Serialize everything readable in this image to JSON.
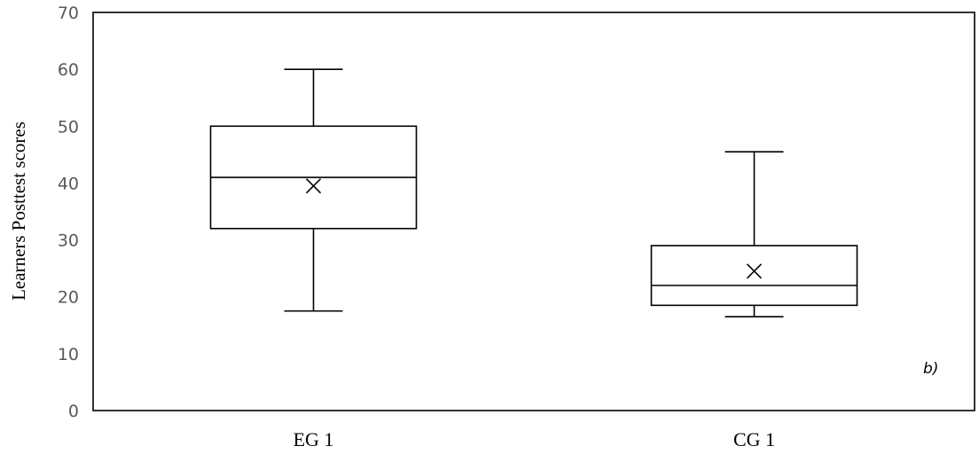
{
  "chart_data": {
    "type": "box",
    "ylabel": "Learners Posttest scores",
    "ylim": [
      0,
      70
    ],
    "yticks": [
      0,
      10,
      20,
      30,
      40,
      50,
      60,
      70
    ],
    "grid": false,
    "legend": "none",
    "panel_label": "b)",
    "categories": [
      "EG 1",
      "CG 1"
    ],
    "boxes": [
      {
        "category": "EG 1",
        "min": 17.5,
        "q1": 32,
        "median": 41,
        "q3": 50,
        "max": 60,
        "mean": 39.5
      },
      {
        "category": "CG 1",
        "min": 16.5,
        "q1": 18.5,
        "median": 22,
        "q3": 29,
        "max": 45.5,
        "mean": 24.5
      }
    ]
  }
}
